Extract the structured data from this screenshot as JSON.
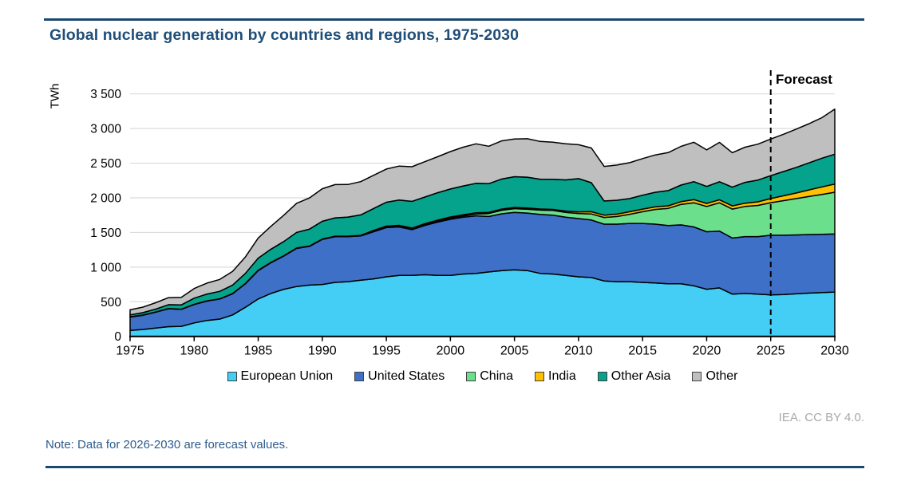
{
  "title": "Global nuclear generation by countries and regions, 1975-2030",
  "note": "Note: Data for 2026-2030 are forecast values.",
  "attribution": "IEA. CC BY 4.0.",
  "forecast_label": "Forecast",
  "colors": {
    "title": "#1F4E79",
    "rule": "#1B486F",
    "note": "#2D5B8E",
    "attribution": "#A8A8A8",
    "grid": "#DBDBDB",
    "axis": "#000000",
    "band_outline": "#000000",
    "forecast_line": "#000000"
  },
  "chart_data": {
    "type": "area",
    "stacked": true,
    "title": "Global nuclear generation by countries and regions, 1975-2030",
    "ylabel": "TWh",
    "xlabel": "",
    "ylim": [
      0,
      3500
    ],
    "xlim": [
      1975,
      2030
    ],
    "grid": "horizontal",
    "legend_position": "bottom",
    "forecast_start_year": 2025,
    "x_ticks": [
      "1975",
      "1980",
      "1985",
      "1990",
      "1995",
      "2000",
      "2005",
      "2010",
      "2015",
      "2020",
      "2025",
      "2030"
    ],
    "y_tick_values": [
      0,
      500,
      1000,
      1500,
      2000,
      2500,
      3000,
      3500
    ],
    "y_tick_labels": [
      "0",
      "500",
      "1 000",
      "1 500",
      "2 000",
      "2 500",
      "3 000",
      "3 500"
    ],
    "years": [
      1975,
      1976,
      1977,
      1978,
      1979,
      1980,
      1981,
      1982,
      1983,
      1984,
      1985,
      1986,
      1987,
      1988,
      1989,
      1990,
      1991,
      1992,
      1993,
      1994,
      1995,
      1996,
      1997,
      1998,
      1999,
      2000,
      2001,
      2002,
      2003,
      2004,
      2005,
      2006,
      2007,
      2008,
      2009,
      2010,
      2011,
      2012,
      2013,
      2014,
      2015,
      2016,
      2017,
      2018,
      2019,
      2020,
      2021,
      2022,
      2023,
      2024,
      2025,
      2026,
      2027,
      2028,
      2029,
      2030
    ],
    "series": [
      {
        "name": "European Union",
        "color": "#45CEF5",
        "values": [
          85,
          100,
          120,
          140,
          145,
          195,
          230,
          250,
          310,
          420,
          540,
          620,
          680,
          720,
          740,
          750,
          780,
          790,
          810,
          830,
          860,
          880,
          880,
          890,
          880,
          880,
          900,
          910,
          930,
          950,
          960,
          950,
          910,
          900,
          880,
          860,
          850,
          800,
          790,
          790,
          780,
          770,
          760,
          760,
          730,
          680,
          700,
          610,
          620,
          610,
          600,
          605,
          615,
          625,
          632,
          640
        ]
      },
      {
        "name": "United States",
        "color": "#3E70C8",
        "values": [
          195,
          205,
          230,
          260,
          245,
          265,
          280,
          290,
          305,
          340,
          410,
          445,
          480,
          550,
          560,
          650,
          660,
          650,
          640,
          680,
          710,
          700,
          660,
          710,
          770,
          810,
          820,
          830,
          800,
          820,
          830,
          830,
          850,
          850,
          840,
          840,
          830,
          820,
          830,
          840,
          850,
          850,
          840,
          850,
          850,
          830,
          820,
          810,
          820,
          830,
          860,
          855,
          850,
          845,
          842,
          840
        ]
      },
      {
        "name": "China",
        "color": "#6CDF8C",
        "values": [
          0,
          0,
          0,
          0,
          0,
          0,
          0,
          0,
          0,
          0,
          0,
          0,
          0,
          0,
          0,
          0,
          0,
          0,
          2,
          14,
          13,
          14,
          14,
          14,
          15,
          17,
          17,
          25,
          43,
          50,
          53,
          55,
          62,
          68,
          70,
          74,
          87,
          97,
          111,
          133,
          170,
          213,
          248,
          295,
          349,
          366,
          408,
          418,
          435,
          450,
          470,
          500,
          525,
          550,
          575,
          600
        ]
      },
      {
        "name": "India",
        "color": "#FFC000",
        "values": [
          3,
          3,
          2,
          3,
          3,
          3,
          3,
          2,
          3,
          4,
          5,
          5,
          5,
          6,
          4,
          6,
          6,
          7,
          6,
          6,
          8,
          9,
          10,
          12,
          13,
          16,
          19,
          19,
          17,
          17,
          17,
          18,
          17,
          15,
          19,
          23,
          32,
          33,
          34,
          36,
          38,
          38,
          37,
          39,
          45,
          43,
          44,
          46,
          48,
          52,
          60,
          70,
          80,
          95,
          108,
          120
        ]
      },
      {
        "name": "Other Asia",
        "color": "#05A28C",
        "values": [
          28,
          35,
          42,
          55,
          62,
          88,
          98,
          108,
          122,
          145,
          175,
          190,
          205,
          225,
          245,
          255,
          265,
          275,
          295,
          315,
          345,
          365,
          385,
          385,
          395,
          405,
          415,
          425,
          415,
          435,
          445,
          445,
          430,
          435,
          450,
          480,
          420,
          205,
          200,
          190,
          200,
          210,
          220,
          240,
          260,
          245,
          260,
          270,
          300,
          315,
          330,
          350,
          370,
          390,
          415,
          430
        ]
      },
      {
        "name": "Other",
        "color": "#BFBFBF",
        "values": [
          72,
          80,
          92,
          102,
          108,
          140,
          158,
          172,
          198,
          238,
          290,
          330,
          380,
          420,
          450,
          470,
          480,
          470,
          480,
          480,
          480,
          490,
          500,
          510,
          520,
          540,
          560,
          570,
          540,
          550,
          545,
          555,
          545,
          535,
          520,
          490,
          500,
          498,
          508,
          518,
          528,
          538,
          548,
          558,
          568,
          528,
          568,
          498,
          508,
          518,
          528,
          538,
          552,
          566,
          585,
          650
        ]
      }
    ]
  }
}
